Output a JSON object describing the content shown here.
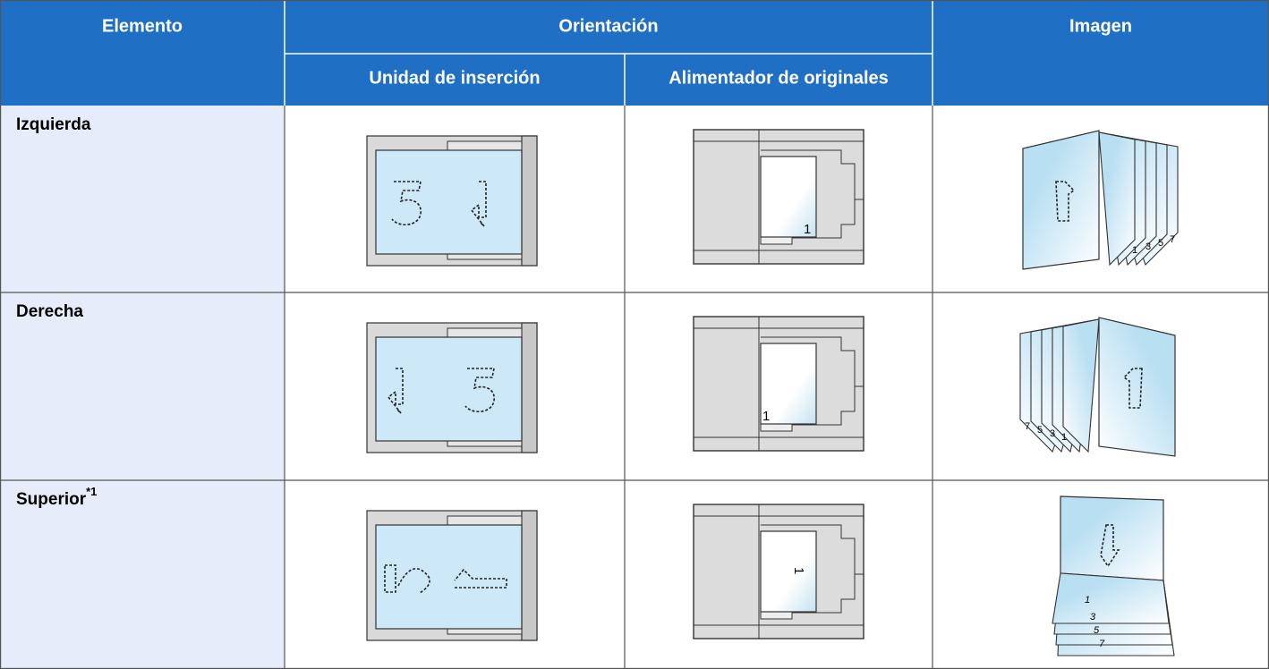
{
  "table": {
    "header": {
      "item": "Elemento",
      "orientation": "Orientación",
      "image": "Imagen",
      "insertion_unit": "Unidad de inserción",
      "document_processor": "Alimentador de originales"
    },
    "rows": [
      {
        "label": "Izquierda",
        "page_number": "1",
        "book_pages": [
          "1",
          "3",
          "5",
          "7"
        ]
      },
      {
        "label": "Derecha",
        "page_number": "1",
        "book_pages": [
          "1",
          "3",
          "5",
          "7"
        ]
      },
      {
        "label": "Superior",
        "note": "*1",
        "page_number": "1",
        "book_pages": [
          "1",
          "3",
          "5",
          "7"
        ]
      }
    ]
  }
}
